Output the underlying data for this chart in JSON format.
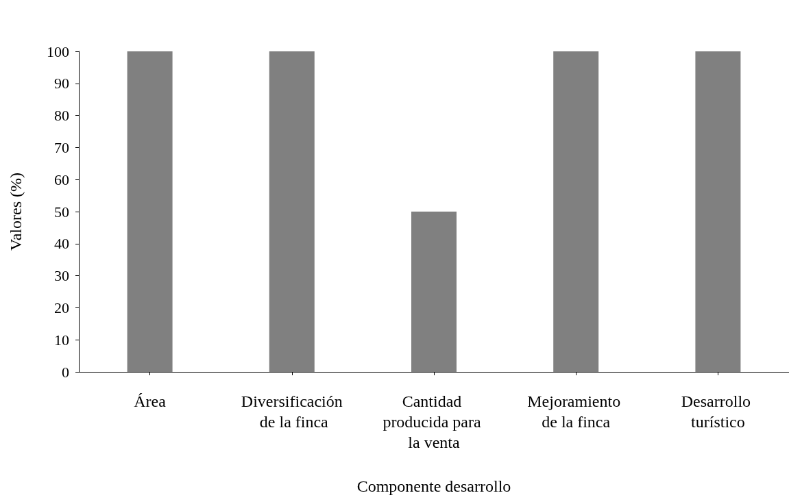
{
  "chart_data": {
    "type": "bar",
    "xlabel": "Componente desarrollo",
    "ylabel": "Valores (%)",
    "categories": [
      "Área",
      "Diversificación de la finca",
      "Cantidad producida para la venta",
      "Mejoramiento de la finca",
      "Desarrollo turístico"
    ],
    "values": [
      100,
      100,
      50,
      100,
      100
    ],
    "color": "#808080",
    "ylim": [
      0,
      100
    ],
    "yticks": [
      0,
      10,
      20,
      30,
      40,
      50,
      60,
      70,
      80,
      90,
      100
    ],
    "grid": false
  }
}
